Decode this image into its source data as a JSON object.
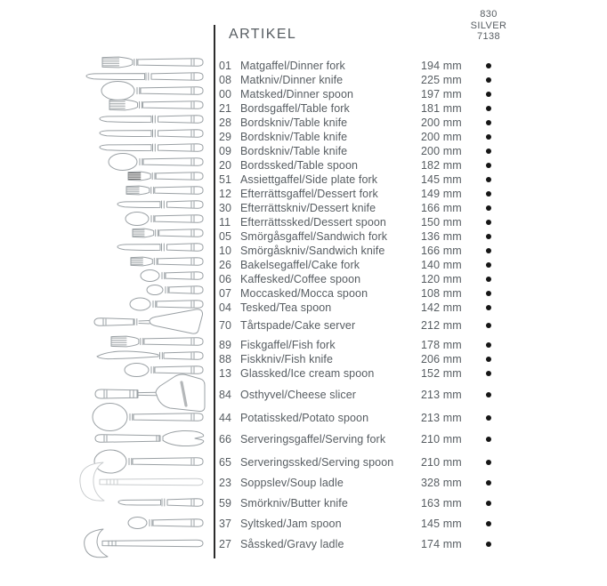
{
  "page": {
    "table_header": "ARTIKEL",
    "column_header": {
      "lines": [
        "830",
        "SILVER",
        "7138"
      ]
    }
  },
  "items": [
    {
      "no": "01",
      "name": "Matgaffel/Dinner fork",
      "size": "194 mm",
      "dot": true,
      "illustration": "fork"
    },
    {
      "no": "08",
      "name": "Matkniv/Dinner knife",
      "size": "225 mm",
      "dot": true,
      "illustration": "knife"
    },
    {
      "no": "00",
      "name": "Matsked/Dinner spoon",
      "size": "197 mm",
      "dot": true,
      "illustration": "spoon"
    },
    {
      "no": "21",
      "name": "Bordsgaffel/Table fork",
      "size": "181 mm",
      "dot": true,
      "illustration": "fork"
    },
    {
      "no": "28",
      "name": "Bordskniv/Table knife",
      "size": "200 mm",
      "dot": true,
      "illustration": "knife"
    },
    {
      "no": "29",
      "name": "Bordskniv/Table knife",
      "size": "200 mm",
      "dot": true,
      "illustration": "knife"
    },
    {
      "no": "09",
      "name": "Bordskniv/Table knife",
      "size": "200 mm",
      "dot": true,
      "illustration": "knife"
    },
    {
      "no": "20",
      "name": "Bordssked/Table spoon",
      "size": "182 mm",
      "dot": true,
      "illustration": "spoon"
    },
    {
      "no": "51",
      "name": "Assiettgaffel/Side plate fork",
      "size": "145 mm",
      "dot": true,
      "illustration": "fork-dark"
    },
    {
      "no": "12",
      "name": "Efterrättsgaffel/Dessert fork",
      "size": "149 mm",
      "dot": true,
      "illustration": "fork"
    },
    {
      "no": "30",
      "name": "Efterrättskniv/Dessert knife",
      "size": "166 mm",
      "dot": true,
      "illustration": "knife"
    },
    {
      "no": "11",
      "name": "Efterrättssked/Dessert spoon",
      "size": "150 mm",
      "dot": true,
      "illustration": "spoon"
    },
    {
      "no": "05",
      "name": "Smörgåsgaffel/Sandwich fork",
      "size": "136 mm",
      "dot": true,
      "illustration": "fork"
    },
    {
      "no": "10",
      "name": "Smörgåskniv/Sandwich knife",
      "size": "166 mm",
      "dot": true,
      "illustration": "knife"
    },
    {
      "no": "26",
      "name": "Bakelsegaffel/Cake fork",
      "size": "140 mm",
      "dot": true,
      "illustration": "fork"
    },
    {
      "no": "06",
      "name": "Kaffesked/Coffee spoon",
      "size": "120 mm",
      "dot": true,
      "illustration": "spoon"
    },
    {
      "no": "07",
      "name": "Moccasked/Mocca spoon",
      "size": "108 mm",
      "dot": true,
      "illustration": "spoon"
    },
    {
      "no": "04",
      "name": "Tesked/Tea spoon",
      "size": "142 mm",
      "dot": true,
      "illustration": "spoon"
    },
    {
      "no": "70",
      "name": "Tårtspade/Cake server",
      "size": "212 mm",
      "dot": true,
      "illustration": "cake-server"
    },
    {
      "no": "89",
      "name": "Fiskgaffel/Fish fork",
      "size": "178 mm",
      "dot": true,
      "illustration": "fork"
    },
    {
      "no": "88",
      "name": "Fiskkniv/Fish knife",
      "size": "206 mm",
      "dot": true,
      "illustration": "fish-knife"
    },
    {
      "no": "13",
      "name": "Glassked/Ice cream spoon",
      "size": "152 mm",
      "dot": true,
      "illustration": "spoon"
    },
    {
      "no": "84",
      "name": "Osthyvel/Cheese slicer",
      "size": "213 mm",
      "dot": true,
      "illustration": "cheese-slicer"
    },
    {
      "no": "44",
      "name": "Potatissked/Potato spoon",
      "size": "213 mm",
      "dot": true,
      "illustration": "spoon"
    },
    {
      "no": "66",
      "name": "Serveringsgaffel/Serving fork",
      "size": "210 mm",
      "dot": true,
      "illustration": "serving-fork"
    },
    {
      "no": "65",
      "name": "Serveringssked/Serving spoon",
      "size": "210 mm",
      "dot": true,
      "illustration": "spoon"
    },
    {
      "no": "23",
      "name": "Soppslev/Soup ladle",
      "size": "328 mm",
      "dot": true,
      "illustration": "ladle"
    },
    {
      "no": "59",
      "name": "Smörkniv/Butter knife",
      "size": "163 mm",
      "dot": true,
      "illustration": "knife"
    },
    {
      "no": "37",
      "name": "Syltsked/Jam spoon",
      "size": "145 mm",
      "dot": true,
      "illustration": "spoon"
    },
    {
      "no": "27",
      "name": "Såssked/Gravy ladle",
      "size": "174 mm",
      "dot": true,
      "illustration": "ladle"
    }
  ],
  "colors": {
    "text": "#575d62",
    "rule": "#2c2c2c",
    "dot": "#161616",
    "drawing": "#9aa0a4",
    "drawing_light": "#c9ccce",
    "drawing_dark": "#6e6e6e"
  }
}
